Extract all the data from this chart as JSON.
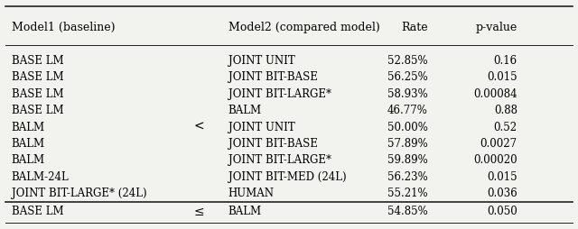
{
  "headers": [
    "Model1 (baseline)",
    "",
    "Model2 (compared model)",
    "Rate",
    "p-value"
  ],
  "rows": [
    [
      "BASE LM",
      "",
      "JOINT UNIT",
      "52.85%",
      "0.16"
    ],
    [
      "BASE LM",
      "",
      "JOINT BIT-BASE",
      "56.25%",
      "0.015"
    ],
    [
      "BASE LM",
      "",
      "JOINT BIT-LARGE*",
      "58.93%",
      "0.00084"
    ],
    [
      "BASE LM",
      "",
      "BALM",
      "46.77%",
      "0.88"
    ],
    [
      "BALM",
      "<",
      "JOINT UNIT",
      "50.00%",
      "0.52"
    ],
    [
      "BALM",
      "",
      "JOINT BIT-BASE",
      "57.89%",
      "0.0027"
    ],
    [
      "BALM",
      "",
      "JOINT BIT-LARGE*",
      "59.89%",
      "0.00020"
    ],
    [
      "BALM-24L",
      "",
      "JOINT BIT-MED (24L)",
      "56.23%",
      "0.015"
    ],
    [
      "JOINT BIT-LARGE* (24L)",
      "",
      "HUMAN",
      "55.21%",
      "0.036"
    ]
  ],
  "footer_row": [
    "BASE LM",
    "≤",
    "BALM",
    "54.85%",
    "0.050"
  ],
  "bg_color": "#f2f2ee",
  "line_color": "#222222",
  "font_size": 8.5,
  "header_font_size": 9.0,
  "op_font_size": 10.0
}
